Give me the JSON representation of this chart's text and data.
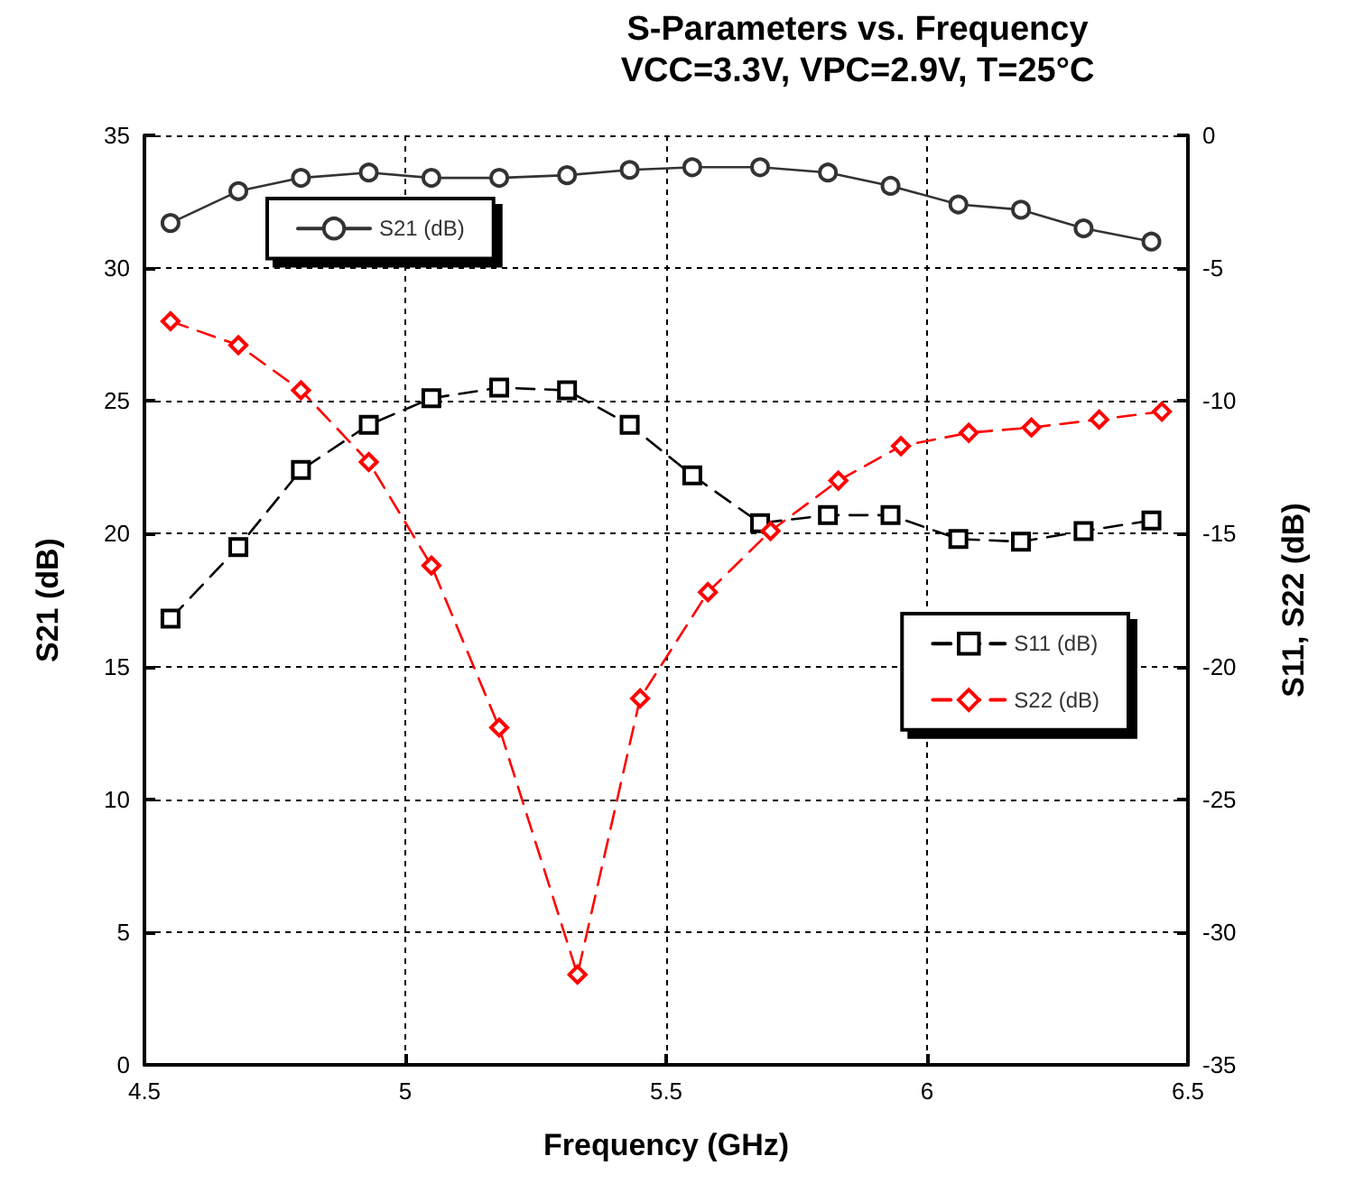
{
  "chart_data": {
    "type": "line",
    "title": "S-Parameters vs. Frequency",
    "subtitle": "VCC=3.3V, VPC=2.9V, T=25°C",
    "xlabel": "Frequency (GHz)",
    "ylabel": "S21 (dB)",
    "y2label": "S11, S22 (dB)",
    "xlim": [
      4.5,
      6.5
    ],
    "xticks": [
      4.5,
      5,
      5.5,
      6,
      6.5
    ],
    "ylim": [
      0,
      35
    ],
    "yticks": [
      0,
      5,
      10,
      15,
      20,
      25,
      30,
      35
    ],
    "y2lim": [
      -35,
      0
    ],
    "y2ticks": [
      -35,
      -30,
      -25,
      -20,
      -15,
      -10,
      -5,
      0
    ],
    "grid": true,
    "legend": "top left",
    "series": [
      {
        "name": "S21 (dB)",
        "color": "#333333",
        "marker": "circle",
        "line_style": "solid",
        "x": [
          4.55,
          4.68,
          4.8,
          4.93,
          5.05,
          5.18,
          5.31,
          5.43,
          5.55,
          5.68,
          5.81,
          5.93,
          6.06,
          6.18,
          6.3,
          6.43
        ],
        "values": [
          31.7,
          32.9,
          33.4,
          33.6,
          33.4,
          33.4,
          33.5,
          33.7,
          33.8,
          33.8,
          33.6,
          33.1,
          32.4,
          32.2,
          31.5,
          31.0
        ]
      },
      {
        "name": "S11 (dB)",
        "color": "#000000",
        "marker": "square",
        "line_style": "dashed",
        "axis": "y2",
        "x": [
          4.55,
          4.68,
          4.8,
          4.93,
          5.05,
          5.18,
          5.31,
          5.43,
          5.55,
          5.68,
          5.81,
          5.93,
          6.06,
          6.18,
          6.3,
          6.43
        ],
        "values": [
          -18.2,
          -15.5,
          -12.6,
          -10.9,
          -9.9,
          -9.5,
          -9.6,
          -10.9,
          -12.8,
          -14.6,
          -14.3,
          -14.3,
          -15.2,
          -15.3,
          -14.9,
          -14.5
        ]
      },
      {
        "name": "S22 (dB)",
        "color": "#ff0000",
        "marker": "diamond",
        "line_style": "dashed",
        "axis": "y2",
        "x": [
          4.55,
          4.68,
          4.8,
          4.93,
          5.05,
          5.18,
          5.33,
          5.45,
          5.58,
          5.7,
          5.83,
          5.95,
          6.08,
          6.2,
          6.33,
          6.45
        ],
        "values": [
          -7.0,
          -7.9,
          -9.6,
          -12.3,
          -16.2,
          -22.3,
          -31.6,
          -21.2,
          -17.2,
          -14.9,
          -13.0,
          -11.7,
          -11.2,
          -11.0,
          -10.7,
          -10.4
        ]
      }
    ]
  }
}
